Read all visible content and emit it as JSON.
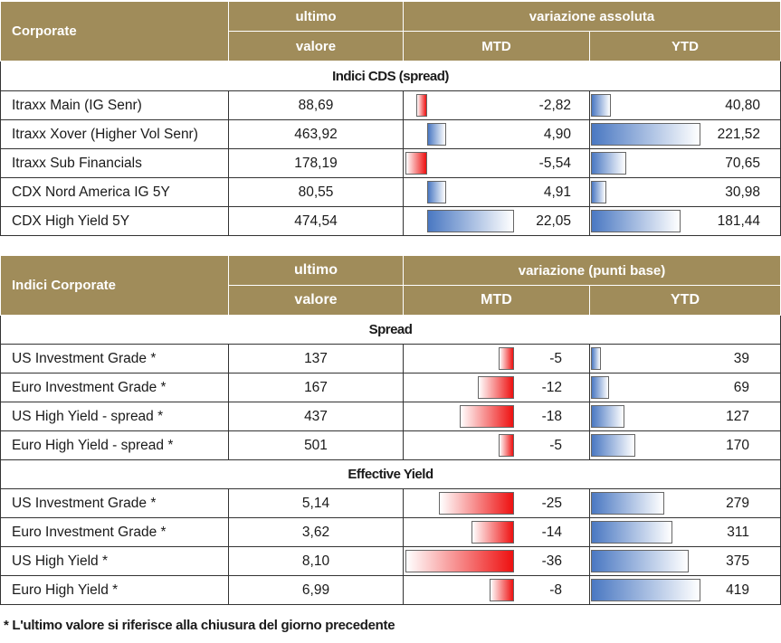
{
  "table1": {
    "header": {
      "corporate": "Corporate",
      "ultimo": "ultimo",
      "valore": "valore",
      "variazione": "variazione assoluta",
      "mtd": "MTD",
      "ytd": "YTD"
    },
    "section": "Indici CDS (spread)",
    "rows": [
      {
        "name": "Itraxx Main (IG Senr)",
        "value": "88,69",
        "mtd": "-2,82",
        "ytd": "40,80"
      },
      {
        "name": "Itraxx Xover (Higher Vol Senr)",
        "value": "463,92",
        "mtd": "4,90",
        "ytd": "221,52"
      },
      {
        "name": "Itraxx Sub Financials",
        "value": "178,19",
        "mtd": "-5,54",
        "ytd": "70,65"
      },
      {
        "name": "CDX Nord America IG 5Y",
        "value": "80,55",
        "mtd": "4,91",
        "ytd": "30,98"
      },
      {
        "name": "CDX High Yield 5Y",
        "value": "474,54",
        "mtd": "22,05",
        "ytd": "181,44"
      }
    ]
  },
  "table2": {
    "header": {
      "indici": "Indici Corporate",
      "ultimo": "ultimo",
      "valore": "valore",
      "variazione": "variazione (punti base)",
      "mtd": "MTD",
      "ytd": "YTD"
    },
    "sections": [
      {
        "title": "Spread",
        "rows": [
          {
            "name": "US Investment Grade *",
            "value": "137",
            "mtd": "-5",
            "ytd": "39"
          },
          {
            "name": "Euro Investment Grade *",
            "value": "167",
            "mtd": "-12",
            "ytd": "69"
          },
          {
            "name": "US High Yield  - spread *",
            "value": "437",
            "mtd": "-18",
            "ytd": "127"
          },
          {
            "name": "Euro High Yield  - spread *",
            "value": "501",
            "mtd": "-5",
            "ytd": "170"
          }
        ]
      },
      {
        "title": "Effective Yield",
        "rows": [
          {
            "name": "US Investment Grade *",
            "value": "5,14",
            "mtd": "-25",
            "ytd": "279"
          },
          {
            "name": "Euro Investment Grade *",
            "value": "3,62",
            "mtd": "-14",
            "ytd": "311"
          },
          {
            "name": "US High Yield *",
            "value": "8,10",
            "mtd": "-36",
            "ytd": "375"
          },
          {
            "name": "Euro High Yield *",
            "value": "6,99",
            "mtd": "-8",
            "ytd": "419"
          }
        ]
      }
    ]
  },
  "footnote": "* L'ultimo valore si riferisce alla chiusura del giorno precedente",
  "colors": {
    "header_bg": "#a08c5a",
    "negative_bar": "#ee1111",
    "positive_bar": "#4a78c2"
  }
}
